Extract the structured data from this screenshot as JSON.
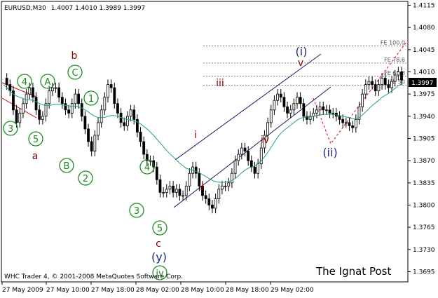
{
  "chart_data": {
    "type": "candlestick",
    "symbol_label": "EURUSD,M30",
    "ohlc_label": "1.4007 1.4010 1.3989 1.3997",
    "copyright": "WHC Trader 4, © 2001-2008 MetaQuotes Software Corp.",
    "watermark": "The Ignat Post",
    "current_price": "1.3997",
    "ylim": [
      1.368,
      1.412
    ],
    "y_ticks": [
      "1.4115",
      "1.4080",
      "1.4045",
      "1.4010",
      "1.3975",
      "1.3940",
      "1.3905",
      "1.3870",
      "1.3835",
      "1.3800",
      "1.3765",
      "1.3730",
      "1.3695"
    ],
    "x_ticks": [
      "27 May 2009",
      "27 May 10:00",
      "27 May 18:00",
      "28 May 02:00",
      "28 May 10:00",
      "28 May 18:00",
      "29 May 02:00"
    ],
    "fib_levels": [
      {
        "label": "FE 100.0",
        "price": 1.4051
      },
      {
        "label": "FE 78.6",
        "price": 1.4024
      },
      {
        "label": "FE 61.8",
        "price": 1.4003
      },
      {
        "label": "FE 50",
        "price": 1.3989
      }
    ],
    "wave_labels": {
      "circled_green": [
        "3",
        "4",
        "5",
        "A",
        "B",
        "C",
        "1",
        "2",
        "4",
        "3",
        "5",
        "iv"
      ],
      "dark_red": [
        "a",
        "b",
        "c",
        "i",
        "ii",
        "iii",
        "iv",
        "v"
      ],
      "navy": [
        "(i)",
        "(ii)",
        "(y)"
      ]
    },
    "price_series": [
      1.4,
      1.399,
      1.398,
      1.395,
      1.393,
      1.3945,
      1.396,
      1.3975,
      1.3985,
      1.397,
      1.395,
      1.3935,
      1.394,
      1.396,
      1.398,
      1.3985,
      1.3985,
      1.397,
      1.396,
      1.395,
      1.3945,
      1.396,
      1.3975,
      1.396,
      1.394,
      1.392,
      1.39,
      1.3885,
      1.391,
      1.393,
      1.395,
      1.397,
      1.399,
      1.3985,
      1.396,
      1.3945,
      1.393,
      1.3925,
      1.394,
      1.395,
      1.3935,
      1.3915,
      1.39,
      1.388,
      1.387,
      1.387,
      1.386,
      1.384,
      1.382,
      1.382,
      1.3825,
      1.383,
      1.382,
      1.3825,
      1.3815,
      1.3815,
      1.383,
      1.385,
      1.386,
      1.385,
      1.383,
      1.3815,
      1.381,
      1.38,
      1.3795,
      1.381,
      1.3825,
      1.383,
      1.383,
      1.3835,
      1.385,
      1.387,
      1.388,
      1.389,
      1.3885,
      1.387,
      1.386,
      1.385,
      1.3865,
      1.389,
      1.391,
      1.393,
      1.395,
      1.3965,
      1.3975,
      1.397,
      1.3955,
      1.3945,
      1.395,
      1.396,
      1.397,
      1.396,
      1.394,
      1.3935,
      1.394,
      1.3945,
      1.395,
      1.3955,
      1.395,
      1.395,
      1.3945,
      1.3945,
      1.394,
      1.3935,
      1.393,
      1.393,
      1.3925,
      1.3922,
      1.3935,
      1.3955,
      1.3975,
      1.399,
      1.3995,
      1.399,
      1.398,
      1.399,
      1.4,
      1.399,
      1.3985,
      1.3995,
      1.4005,
      1.401,
      1.3997
    ],
    "ma_series": [
      1.399,
      1.3985,
      1.398,
      1.3975,
      1.3972,
      1.397,
      1.3968,
      1.3966,
      1.3966,
      1.3965,
      1.3963,
      1.396,
      1.3958,
      1.3957,
      1.3957,
      1.3958,
      1.3959,
      1.3959,
      1.3958,
      1.3957,
      1.3956,
      1.3956,
      1.3956,
      1.3955,
      1.3953,
      1.395,
      1.3947,
      1.3943,
      1.394,
      1.3938,
      1.3938,
      1.3938,
      1.394,
      1.3941,
      1.3941,
      1.394,
      1.3938,
      1.3936,
      1.3935,
      1.3934,
      1.3933,
      1.3931,
      1.3928,
      1.3924,
      1.392,
      1.3915,
      1.391,
      1.3904,
      1.3898,
      1.3892,
      1.3886,
      1.3881,
      1.3876,
      1.3871,
      1.3866,
      1.3862,
      1.3858,
      1.3856,
      1.3855,
      1.3853,
      1.3851,
      1.3848,
      1.3845,
      1.3842,
      1.3839,
      1.3837,
      1.3836,
      1.3836,
      1.3836,
      1.3837,
      1.3839,
      1.3842,
      1.3846,
      1.3851,
      1.3855,
      1.3858,
      1.386,
      1.3862,
      1.3865,
      1.387,
      1.3876,
      1.3883,
      1.3891,
      1.3899,
      1.3907,
      1.3913,
      1.3918,
      1.3922,
      1.3926,
      1.393,
      1.3934,
      1.3937,
      1.3938,
      1.3939,
      1.3939,
      1.394,
      1.3941,
      1.3942,
      1.3943,
      1.3943,
      1.3943,
      1.3943,
      1.3942,
      1.3941,
      1.394,
      1.3939,
      1.3938,
      1.3936,
      1.3936,
      1.3938,
      1.3942,
      1.3947,
      1.3952,
      1.3957,
      1.3961,
      1.3965,
      1.397,
      1.3973,
      1.3976,
      1.398,
      1.3984,
      1.3988,
      1.3991
    ]
  }
}
